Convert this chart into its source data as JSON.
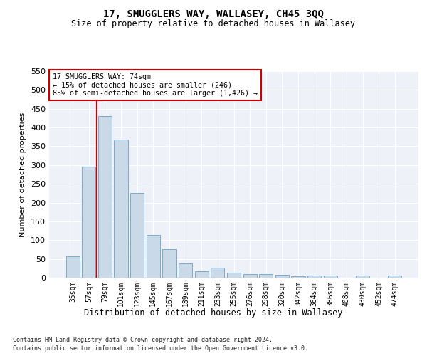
{
  "title": "17, SMUGGLERS WAY, WALLASEY, CH45 3QQ",
  "subtitle": "Size of property relative to detached houses in Wallasey",
  "xlabel": "Distribution of detached houses by size in Wallasey",
  "ylabel": "Number of detached properties",
  "footnote1": "Contains HM Land Registry data © Crown copyright and database right 2024.",
  "footnote2": "Contains public sector information licensed under the Open Government Licence v3.0.",
  "annotation_title": "17 SMUGGLERS WAY: 74sqm",
  "annotation_line1": "← 15% of detached houses are smaller (246)",
  "annotation_line2": "85% of semi-detached houses are larger (1,426) →",
  "bar_categories": [
    "35sqm",
    "57sqm",
    "79sqm",
    "101sqm",
    "123sqm",
    "145sqm",
    "167sqm",
    "189sqm",
    "211sqm",
    "233sqm",
    "255sqm",
    "276sqm",
    "298sqm",
    "320sqm",
    "342sqm",
    "364sqm",
    "386sqm",
    "408sqm",
    "430sqm",
    "452sqm",
    "474sqm"
  ],
  "bar_values": [
    57,
    295,
    430,
    368,
    226,
    113,
    76,
    37,
    18,
    26,
    14,
    10,
    10,
    8,
    4,
    5,
    5,
    0,
    5,
    0,
    5
  ],
  "bar_color": "#c9d9e8",
  "bar_edge_color": "#7aaac8",
  "vline_color": "#cc0000",
  "vline_x_idx": 1,
  "annotation_box_color": "#cc0000",
  "background_color": "#ffffff",
  "plot_bg_color": "#eef2f8",
  "grid_color": "#ffffff",
  "ylim": [
    0,
    550
  ],
  "yticks": [
    0,
    50,
    100,
    150,
    200,
    250,
    300,
    350,
    400,
    450,
    500,
    550
  ]
}
